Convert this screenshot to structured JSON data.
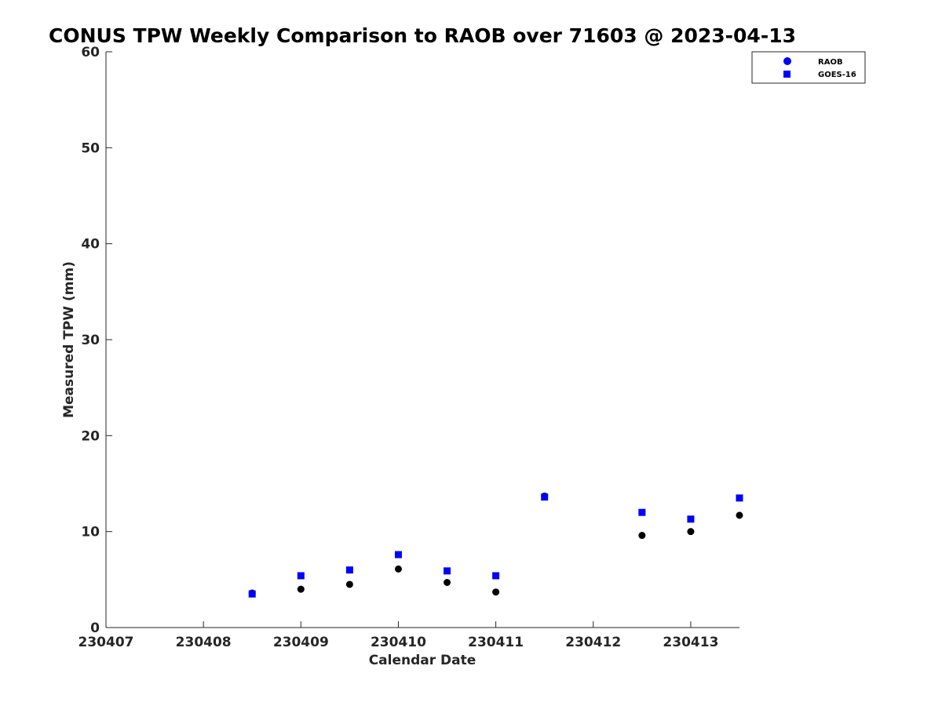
{
  "chart_data": {
    "type": "scatter",
    "title": "CONUS TPW Weekly Comparison to RAOB over 71603 @ 2023-04-13",
    "xlabel": "Calendar Date",
    "ylabel": "Measured TPW (mm)",
    "xlim": [
      230407,
      230413.5
    ],
    "ylim": [
      0,
      60
    ],
    "x_ticks": [
      230407,
      230408,
      230409,
      230410,
      230411,
      230412,
      230413
    ],
    "y_ticks": [
      0,
      10,
      20,
      30,
      40,
      50,
      60
    ],
    "grid": false,
    "legend_position": "top-right",
    "legend": [
      {
        "label": "RAOB",
        "marker": "circle",
        "color": "#0000ff"
      },
      {
        "label": "GOES-16",
        "marker": "square",
        "color": "#0000ff"
      }
    ],
    "series": [
      {
        "name": "RAOB",
        "marker": "circle",
        "color": "#000000",
        "x": [
          230408.5,
          230409,
          230409.5,
          230410,
          230410.5,
          230411,
          230411.5,
          230412.5,
          230413,
          230413.5
        ],
        "values": [
          3.6,
          4.0,
          4.5,
          6.1,
          4.7,
          3.7,
          13.7,
          9.6,
          10.0,
          11.7
        ]
      },
      {
        "name": "GOES-16",
        "marker": "square",
        "color": "#0000ff",
        "x": [
          230408.5,
          230409,
          230409.5,
          230410,
          230410.5,
          230411,
          230411.5,
          230412.5,
          230413,
          230413.5
        ],
        "values": [
          3.5,
          5.4,
          6.0,
          7.6,
          5.9,
          5.4,
          13.6,
          12.0,
          11.3,
          13.5
        ]
      }
    ]
  }
}
